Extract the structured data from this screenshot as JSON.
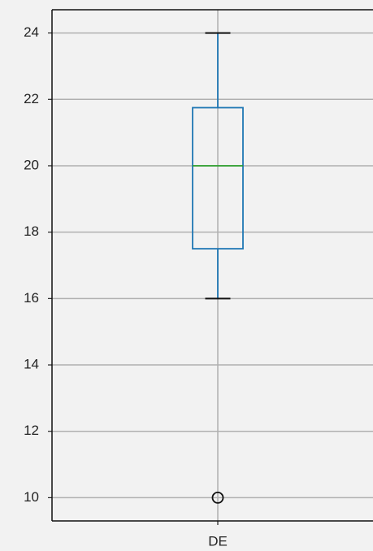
{
  "chart_data": {
    "type": "box",
    "categories": [
      "DE"
    ],
    "boxes": [
      {
        "whislo": 16,
        "q1": 17.5,
        "med": 20,
        "q3": 21.75,
        "whishi": 24,
        "fliers": [
          10
        ]
      }
    ],
    "color": "#1f77b4",
    "median_color": "#2ca02c",
    "ylim": [
      9.3,
      24.7
    ],
    "yticks": [
      10,
      12,
      14,
      16,
      18,
      20,
      22,
      24
    ],
    "grid": true
  }
}
